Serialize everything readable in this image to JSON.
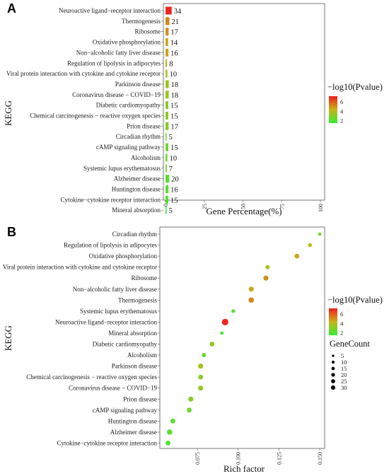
{
  "panel_a": {
    "letter": "A",
    "ylabel": "KEGG",
    "xlabel": "Gene Percentage(%)",
    "legend_title": "−log10(Pvalue)",
    "legend_ticks": [
      "6",
      "4",
      "2"
    ]
  },
  "panel_b": {
    "letter": "B",
    "ylabel": "KEGG",
    "xlabel": "Rich factor",
    "legend_title": "−log10(Pvalue)",
    "legend_ticks": [
      "6",
      "4",
      "2"
    ],
    "size_legend_title": "GeneCount",
    "size_legend_items": [
      "5",
      "10",
      "15",
      "20",
      "25",
      "30"
    ]
  },
  "colors": {
    "low": "#33ee33",
    "mid": "#c8b419",
    "high": "#ee1c1c"
  },
  "chart_data": [
    {
      "type": "bar",
      "orientation": "horizontal",
      "title": "",
      "xlabel": "Gene Percentage(%)",
      "ylabel": "KEGG",
      "xlim": [
        0,
        100
      ],
      "xticks": [
        "0",
        "25",
        "50",
        "75",
        "100"
      ],
      "categories": [
        "Neuroactive ligand−receptor interaction",
        "Thermogenesis",
        "Ribosome",
        "Oxidative phosphorylation",
        "Non−alcoholic fatty liver disease",
        "Regulation of lipolysis in adipocytes",
        "Viral protein interaction with cytokine and cytokine receptor",
        "Parkinson disease",
        "Coronavirus disease − COVID−19",
        "Diabetic cardiomyopathy",
        "Chemical carcinogenesis − reactive oxygen species",
        "Prion disease",
        "Circadian rhythm",
        "cAMP signaling pathway",
        "Alcoholism",
        "Systemic lupus erythematosus",
        "Alzheimer disease",
        "Huntington disease",
        "Cytokine−cytokine receptor interaction",
        "Mineral absorption"
      ],
      "values": [
        4.0,
        2.5,
        2.0,
        1.7,
        1.9,
        1.0,
        1.2,
        2.1,
        2.1,
        1.8,
        1.8,
        2.0,
        0.6,
        1.8,
        1.2,
        0.8,
        2.4,
        1.9,
        1.8,
        0.6
      ],
      "labels": [
        "34",
        "21",
        "17",
        "14",
        "16",
        "8",
        "10",
        "18",
        "18",
        "15",
        "15",
        "17",
        "5",
        "15",
        "10",
        "7",
        "20",
        "16",
        "15",
        "5"
      ],
      "neg_log10_pvalue": [
        7.0,
        5.2,
        5.0,
        4.6,
        4.6,
        4.0,
        3.8,
        3.6,
        3.5,
        3.3,
        3.2,
        3.1,
        2.6,
        2.6,
        2.5,
        2.4,
        2.3,
        2.2,
        2.1,
        1.6
      ],
      "legend": {
        "title": "−log10(Pvalue)",
        "range": [
          1.5,
          7.2
        ],
        "ticks": [
          2,
          4,
          6
        ],
        "position": "right"
      },
      "grid": false
    },
    {
      "type": "scatter",
      "title": "",
      "xlabel": "Rich factor",
      "ylabel": "KEGG",
      "xlim": [
        0.052,
        0.153
      ],
      "xticks": [
        0.075,
        0.1,
        0.125,
        0.15
      ],
      "xtick_labels": [
        "0.075",
        "0.100",
        "0.125",
        "0.150"
      ],
      "categories": [
        "Circadian rhythm",
        "Regulation of lipolysis in adipocytes",
        "Oxidative phosphorylation",
        "Viral protein interaction with cytokine and cytokine receptor",
        "Ribosome",
        "Non−alcoholic fatty liver disease",
        "Thermogenesis",
        "Systemic lupus erythematosus",
        "Neuroactive ligand−receptor interaction",
        "Mineral absorption",
        "Diabetic cardiomyopathy",
        "Alcoholism",
        "Parkinson disease",
        "Chemical carcinogenesis − reactive oxygen species",
        "Coronavirus disease − COVID−19",
        "Prion disease",
        "cAMP signaling pathway",
        "Huntington disease",
        "Alzheimer disease",
        "Cytokine−cytokine receptor interaction"
      ],
      "x": [
        0.15,
        0.144,
        0.136,
        0.118,
        0.117,
        0.108,
        0.108,
        0.097,
        0.092,
        0.09,
        0.084,
        0.079,
        0.077,
        0.077,
        0.077,
        0.071,
        0.07,
        0.06,
        0.058,
        0.057
      ],
      "gene_count": [
        5,
        8,
        14,
        10,
        17,
        16,
        21,
        7,
        34,
        5,
        15,
        10,
        18,
        15,
        18,
        17,
        15,
        16,
        20,
        15
      ],
      "neg_log10_pvalue": [
        2.6,
        4.0,
        4.6,
        3.8,
        5.0,
        4.6,
        5.2,
        2.4,
        7.0,
        1.6,
        3.3,
        2.5,
        3.6,
        3.2,
        3.5,
        3.1,
        2.6,
        2.2,
        2.3,
        2.1
      ],
      "color_legend": {
        "title": "−log10(Pvalue)",
        "range": [
          1.5,
          7.2
        ],
        "ticks": [
          2,
          4,
          6
        ],
        "position": "right"
      },
      "size_legend": {
        "title": "GeneCount",
        "values": [
          5,
          10,
          15,
          20,
          25,
          30
        ],
        "position": "right"
      },
      "grid": false
    }
  ]
}
